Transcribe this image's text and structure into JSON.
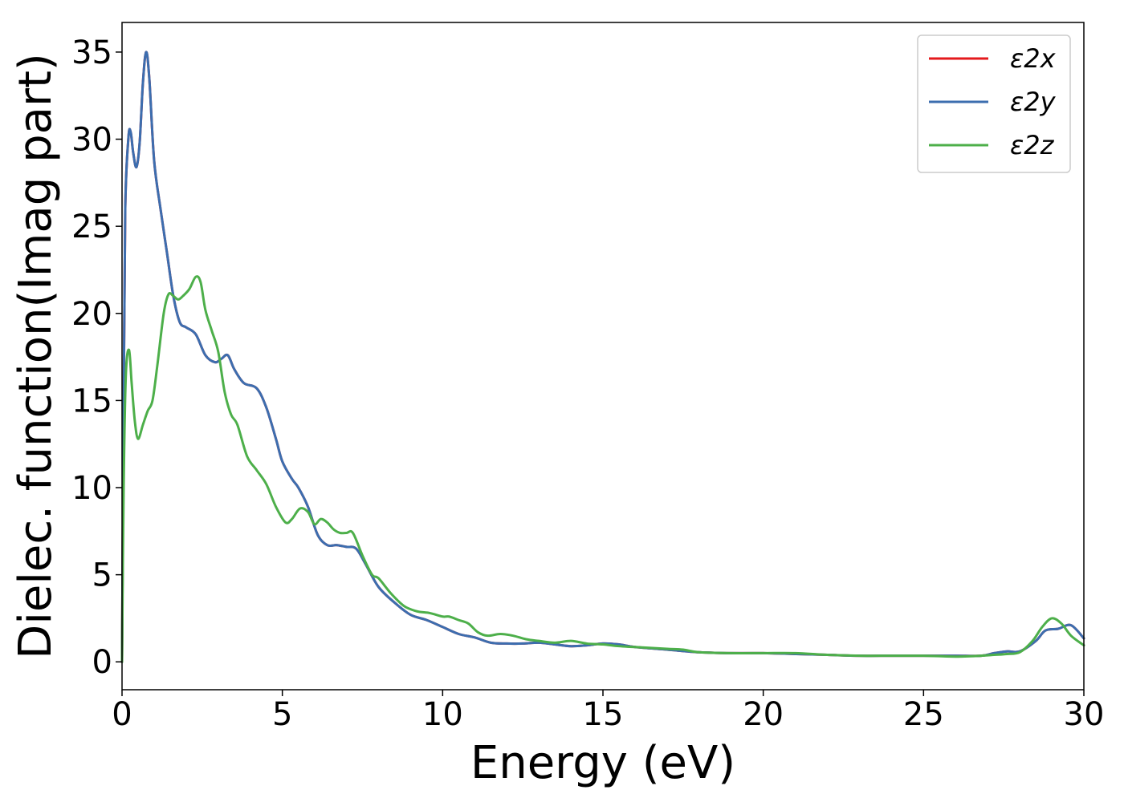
{
  "chart_data": {
    "type": "line",
    "title": "",
    "xlabel": "Energy (eV)",
    "ylabel": "Dielec. function(Imag part)",
    "xlim": [
      0,
      30
    ],
    "ylim": [
      -1.6,
      36.7
    ],
    "xticks": [
      0,
      5,
      10,
      15,
      20,
      25,
      30
    ],
    "yticks": [
      0,
      5,
      10,
      15,
      20,
      25,
      30,
      35
    ],
    "grid": false,
    "legend_position": "top-right",
    "series": [
      {
        "name": "ε2x",
        "color": "#e41a1c",
        "x": [
          0,
          0.05,
          0.1,
          0.2,
          0.27,
          0.35,
          0.45,
          0.55,
          0.65,
          0.75,
          0.85,
          1.0,
          1.2,
          1.4,
          1.6,
          1.8,
          2.0,
          2.3,
          2.6,
          2.9,
          3.1,
          3.3,
          3.5,
          3.8,
          4.2,
          4.5,
          4.8,
          5.0,
          5.3,
          5.5,
          5.8,
          6.1,
          6.4,
          6.7,
          7.0,
          7.3,
          7.6,
          8.0,
          8.5,
          9.0,
          9.5,
          10.0,
          10.5,
          11.0,
          11.5,
          12.0,
          12.5,
          13.0,
          13.5,
          14.0,
          14.5,
          15.0,
          15.5,
          16.0,
          17.0,
          18.0,
          19.0,
          20.0,
          21.0,
          22.0,
          23.0,
          24.0,
          25.0,
          26.0,
          26.8,
          27.2,
          27.6,
          28.0,
          28.5,
          28.8,
          29.2,
          29.6,
          30.0
        ],
        "values": [
          0,
          15,
          26,
          30.1,
          30.4,
          29.2,
          28.4,
          29.8,
          33.2,
          35.0,
          33.5,
          28.8,
          26.0,
          23.5,
          21.0,
          19.5,
          19.2,
          18.8,
          17.6,
          17.2,
          17.4,
          17.6,
          16.8,
          16.0,
          15.7,
          14.6,
          12.8,
          11.5,
          10.5,
          10.0,
          8.9,
          7.3,
          6.7,
          6.7,
          6.6,
          6.5,
          5.6,
          4.3,
          3.4,
          2.7,
          2.4,
          2.0,
          1.6,
          1.4,
          1.1,
          1.05,
          1.05,
          1.1,
          1.0,
          0.9,
          0.95,
          1.05,
          1.0,
          0.85,
          0.7,
          0.55,
          0.5,
          0.5,
          0.45,
          0.4,
          0.35,
          0.35,
          0.35,
          0.35,
          0.35,
          0.5,
          0.6,
          0.6,
          1.2,
          1.8,
          1.9,
          2.1,
          1.35
        ]
      },
      {
        "name": "ε2y",
        "color": "#3c6eaf",
        "x": [
          0,
          0.05,
          0.1,
          0.2,
          0.27,
          0.35,
          0.45,
          0.55,
          0.65,
          0.75,
          0.85,
          1.0,
          1.2,
          1.4,
          1.6,
          1.8,
          2.0,
          2.3,
          2.6,
          2.9,
          3.1,
          3.3,
          3.5,
          3.8,
          4.2,
          4.5,
          4.8,
          5.0,
          5.3,
          5.5,
          5.8,
          6.1,
          6.4,
          6.7,
          7.0,
          7.3,
          7.6,
          8.0,
          8.5,
          9.0,
          9.5,
          10.0,
          10.5,
          11.0,
          11.5,
          12.0,
          12.5,
          13.0,
          13.5,
          14.0,
          14.5,
          15.0,
          15.5,
          16.0,
          17.0,
          18.0,
          19.0,
          20.0,
          21.0,
          22.0,
          23.0,
          24.0,
          25.0,
          26.0,
          26.8,
          27.2,
          27.6,
          28.0,
          28.5,
          28.8,
          29.2,
          29.6,
          30.0
        ],
        "values": [
          0,
          15,
          26,
          30.1,
          30.4,
          29.2,
          28.4,
          29.8,
          33.2,
          35.0,
          33.5,
          28.8,
          26.0,
          23.5,
          21.0,
          19.5,
          19.2,
          18.8,
          17.6,
          17.2,
          17.4,
          17.6,
          16.8,
          16.0,
          15.7,
          14.6,
          12.8,
          11.5,
          10.5,
          10.0,
          8.9,
          7.3,
          6.7,
          6.7,
          6.6,
          6.5,
          5.6,
          4.3,
          3.4,
          2.7,
          2.4,
          2.0,
          1.6,
          1.4,
          1.1,
          1.05,
          1.05,
          1.1,
          1.0,
          0.9,
          0.95,
          1.05,
          1.0,
          0.85,
          0.7,
          0.55,
          0.5,
          0.5,
          0.45,
          0.4,
          0.35,
          0.35,
          0.35,
          0.35,
          0.35,
          0.5,
          0.6,
          0.6,
          1.2,
          1.8,
          1.9,
          2.1,
          1.35
        ]
      },
      {
        "name": "ε2z",
        "color": "#4daf4a",
        "x": [
          0,
          0.05,
          0.12,
          0.22,
          0.3,
          0.4,
          0.5,
          0.65,
          0.8,
          0.95,
          1.1,
          1.3,
          1.45,
          1.6,
          1.75,
          1.9,
          2.1,
          2.3,
          2.45,
          2.6,
          2.8,
          3.0,
          3.2,
          3.4,
          3.6,
          3.9,
          4.2,
          4.5,
          4.8,
          5.1,
          5.3,
          5.55,
          5.8,
          6.0,
          6.2,
          6.4,
          6.6,
          6.8,
          7.0,
          7.2,
          7.5,
          7.8,
          8.0,
          8.4,
          8.8,
          9.2,
          9.6,
          10.0,
          10.2,
          10.5,
          10.8,
          11.1,
          11.4,
          11.8,
          12.2,
          12.6,
          13.0,
          13.5,
          14.0,
          14.5,
          15.0,
          15.5,
          16.0,
          17.0,
          17.5,
          18.0,
          19.0,
          20.0,
          21.0,
          22.0,
          23.0,
          24.0,
          25.0,
          26.0,
          26.8,
          27.2,
          27.6,
          28.0,
          28.4,
          28.7,
          29.0,
          29.3,
          29.6,
          30.0
        ],
        "values": [
          0,
          10,
          16.5,
          17.9,
          16.0,
          13.8,
          12.8,
          13.6,
          14.4,
          15.0,
          17.0,
          20.0,
          21.1,
          21.0,
          20.8,
          21.0,
          21.4,
          22.1,
          21.8,
          20.2,
          19.0,
          17.8,
          15.5,
          14.2,
          13.6,
          11.8,
          11.0,
          10.2,
          8.9,
          8.0,
          8.2,
          8.8,
          8.6,
          7.9,
          8.2,
          8.0,
          7.6,
          7.4,
          7.4,
          7.4,
          6.1,
          5.0,
          4.8,
          3.9,
          3.2,
          2.9,
          2.8,
          2.6,
          2.6,
          2.4,
          2.2,
          1.7,
          1.5,
          1.6,
          1.5,
          1.3,
          1.2,
          1.1,
          1.2,
          1.05,
          1.0,
          0.9,
          0.85,
          0.75,
          0.7,
          0.55,
          0.5,
          0.5,
          0.5,
          0.4,
          0.35,
          0.35,
          0.35,
          0.3,
          0.35,
          0.4,
          0.45,
          0.55,
          1.2,
          2.0,
          2.5,
          2.2,
          1.5,
          0.95
        ]
      }
    ]
  }
}
